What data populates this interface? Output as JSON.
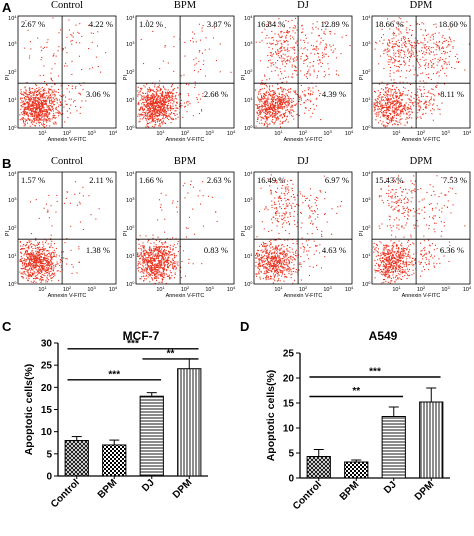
{
  "panels": {
    "A": "A",
    "B": "B",
    "C": "C",
    "D": "D"
  },
  "flow_axis": {
    "xlabel": "Annexin V-FITC",
    "ylabel": "PI",
    "tick_labels": [
      "10^0",
      "10^1",
      "10^2",
      "10^3",
      "10^4"
    ]
  },
  "colors": {
    "dot": "#e8321e",
    "axis": "#000000",
    "background": "#ffffff"
  },
  "chart_data": [
    {
      "type": "scatter",
      "panel": "A",
      "kind": "flow-cytometry quadrant grid",
      "plots": [
        {
          "title": "Control",
          "UL": "2.67 %",
          "UR": "4.22 %",
          "LR": "3.06 %"
        },
        {
          "title": "BPM",
          "UL": "1.02 %",
          "UR": "3.87 %",
          "LR": "2.66 %"
        },
        {
          "title": "DJ",
          "UL": "16.84 %",
          "UR": "12.89 %",
          "LR": "4.39 %"
        },
        {
          "title": "DPM",
          "UL": "18.66 %",
          "UR": "18.60 %",
          "LR": "8.11 %"
        }
      ]
    },
    {
      "type": "scatter",
      "panel": "B",
      "kind": "flow-cytometry quadrant grid",
      "plots": [
        {
          "title": "Control",
          "UL": "1.57 %",
          "UR": "2.11 %",
          "LR": "1.38 %"
        },
        {
          "title": "BPM",
          "UL": "1.66 %",
          "UR": "2.63 %",
          "LR": "0.83 %"
        },
        {
          "title": "DJ",
          "UL": "16.49 %",
          "UR": "6.97 %",
          "LR": "4.63 %"
        },
        {
          "title": "DPM",
          "UL": "15.43 %",
          "UR": "7.53 %",
          "LR": "6.36 %"
        }
      ]
    },
    {
      "type": "bar",
      "panel": "C",
      "title": "MCF-7",
      "ylabel": "Apoptotic cells(%)",
      "categories": [
        "Control",
        "BPM",
        "DJ",
        "DPM"
      ],
      "values": [
        8.0,
        7.0,
        18.0,
        24.2
      ],
      "errors": [
        0.9,
        1.1,
        0.8,
        2.2
      ],
      "patterns": [
        "crosshatch",
        "checker",
        "hlines",
        "vlines"
      ],
      "ylim": [
        0,
        30
      ],
      "yticks": [
        "0",
        "5",
        "10",
        "15",
        "20",
        "25",
        "30"
      ],
      "significance": [
        {
          "from": 0,
          "to": 3,
          "label": "***"
        },
        {
          "from": 2,
          "to": 3,
          "label": "**"
        },
        {
          "from": 0,
          "to": 2,
          "label": "***"
        }
      ]
    },
    {
      "type": "bar",
      "panel": "D",
      "title": "A549",
      "ylabel": "Apoptotic cells(%)",
      "categories": [
        "Control",
        "BPM",
        "DJ",
        "DPM"
      ],
      "values": [
        4.3,
        3.2,
        12.3,
        15.2
      ],
      "errors": [
        1.4,
        0.4,
        1.9,
        2.8
      ],
      "patterns": [
        "crosshatch",
        "checker",
        "hlines",
        "vlines"
      ],
      "ylim": [
        0,
        25
      ],
      "yticks": [
        "0",
        "5",
        "10",
        "15",
        "20",
        "25"
      ],
      "significance": [
        {
          "from": 0,
          "to": 3,
          "label": "***"
        },
        {
          "from": 0,
          "to": 2,
          "label": "**"
        }
      ]
    }
  ]
}
